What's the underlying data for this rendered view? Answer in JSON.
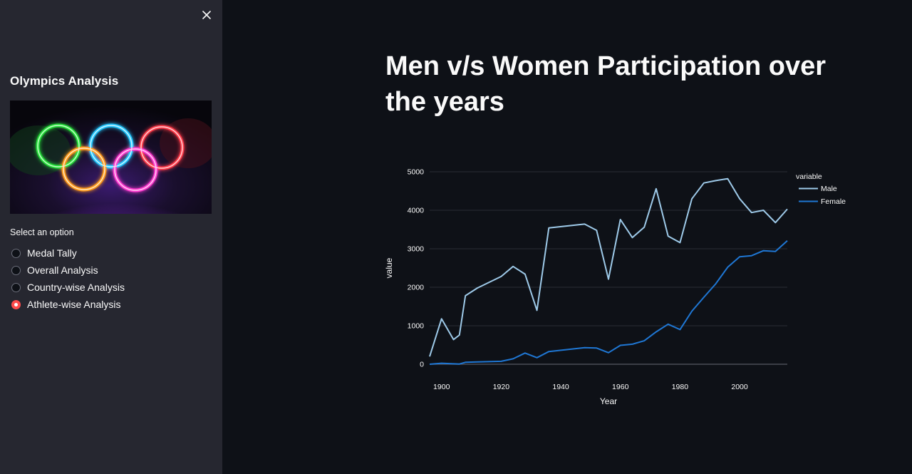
{
  "sidebar": {
    "title": "Olympics Analysis",
    "select_label": "Select an option",
    "options": [
      {
        "label": "Medal Tally",
        "selected": false
      },
      {
        "label": "Overall Analysis",
        "selected": false
      },
      {
        "label": "Country-wise Analysis",
        "selected": false
      },
      {
        "label": "Athlete-wise Analysis",
        "selected": true
      }
    ],
    "close_icon": "close-icon",
    "accent_color": "#ff4b4b"
  },
  "main": {
    "title": "Men v/s Women Participation over the years"
  },
  "chart_data": {
    "type": "line",
    "title": "",
    "xlabel": "Year",
    "ylabel": "value",
    "xlim": [
      1896,
      2016
    ],
    "ylim": [
      0,
      5000
    ],
    "x_ticks": [
      1900,
      1920,
      1940,
      1960,
      1980,
      2000
    ],
    "y_ticks": [
      0,
      1000,
      2000,
      3000,
      4000,
      5000
    ],
    "grid": true,
    "legend": {
      "title": "variable",
      "placement": "top-right"
    },
    "series": [
      {
        "name": "Male",
        "color": "#9ecae9",
        "points": [
          [
            1896,
            200
          ],
          [
            1900,
            1180
          ],
          [
            1904,
            640
          ],
          [
            1906,
            760
          ],
          [
            1908,
            1780
          ],
          [
            1912,
            1980
          ],
          [
            1920,
            2280
          ],
          [
            1924,
            2540
          ],
          [
            1928,
            2340
          ],
          [
            1932,
            1400
          ],
          [
            1936,
            3540
          ],
          [
            1948,
            3640
          ],
          [
            1952,
            3480
          ],
          [
            1956,
            2210
          ],
          [
            1960,
            3760
          ],
          [
            1964,
            3290
          ],
          [
            1968,
            3560
          ],
          [
            1972,
            4560
          ],
          [
            1976,
            3330
          ],
          [
            1980,
            3160
          ],
          [
            1984,
            4300
          ],
          [
            1988,
            4710
          ],
          [
            1992,
            4770
          ],
          [
            1996,
            4820
          ],
          [
            2000,
            4300
          ],
          [
            2004,
            3940
          ],
          [
            2008,
            4000
          ],
          [
            2012,
            3680
          ],
          [
            2016,
            4030
          ]
        ]
      },
      {
        "name": "Female",
        "color": "#1f77d4",
        "points": [
          [
            1896,
            0
          ],
          [
            1900,
            25
          ],
          [
            1904,
            12
          ],
          [
            1906,
            6
          ],
          [
            1908,
            50
          ],
          [
            1912,
            60
          ],
          [
            1920,
            75
          ],
          [
            1924,
            140
          ],
          [
            1928,
            290
          ],
          [
            1932,
            170
          ],
          [
            1936,
            330
          ],
          [
            1948,
            430
          ],
          [
            1952,
            420
          ],
          [
            1956,
            300
          ],
          [
            1960,
            490
          ],
          [
            1964,
            520
          ],
          [
            1968,
            610
          ],
          [
            1972,
            840
          ],
          [
            1976,
            1040
          ],
          [
            1980,
            900
          ],
          [
            1984,
            1380
          ],
          [
            1988,
            1740
          ],
          [
            1992,
            2090
          ],
          [
            1996,
            2520
          ],
          [
            2000,
            2790
          ],
          [
            2004,
            2820
          ],
          [
            2008,
            2950
          ],
          [
            2012,
            2930
          ],
          [
            2016,
            3210
          ]
        ]
      }
    ]
  }
}
